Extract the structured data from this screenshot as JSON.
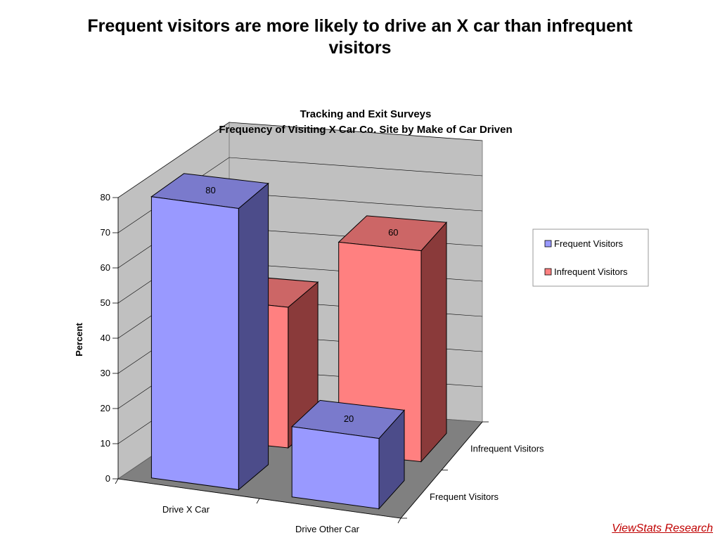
{
  "slide": {
    "title": "Frequent visitors are more likely to drive an X car than infrequent visitors",
    "credit": "ViewStats Research"
  },
  "colors": {
    "frequent_front": "#9999ff",
    "frequent_side": "#4c4c8a",
    "frequent_top": "#7a7acc",
    "infrequent_front": "#ff8080",
    "infrequent_side": "#8a3a3a",
    "infrequent_top": "#cc6666",
    "wall": "#c0c0c0",
    "floor": "#808080"
  },
  "chart_data": {
    "type": "bar",
    "title": "Tracking and Exit Surveys",
    "subtitle": "Frequency of Visiting X Car Co. Site by Make of Car Driven",
    "xlabel": "",
    "ylabel": "Percent",
    "ylim": [
      0,
      80
    ],
    "yticks": [
      0,
      10,
      20,
      30,
      40,
      50,
      60,
      70,
      80
    ],
    "categories": [
      "Drive X Car",
      "Drive Other Car"
    ],
    "depth_categories": [
      "Frequent Visitors",
      "Infrequent Visitors"
    ],
    "series": [
      {
        "name": "Frequent Visitors",
        "values": [
          80,
          20
        ]
      },
      {
        "name": "Infrequent Visitors",
        "values": [
          40,
          60
        ]
      }
    ],
    "data_labels": true,
    "grid": true,
    "legend": {
      "position": "right",
      "entries": [
        "Frequent Visitors",
        "Infrequent Visitors"
      ]
    },
    "three_d": true
  }
}
